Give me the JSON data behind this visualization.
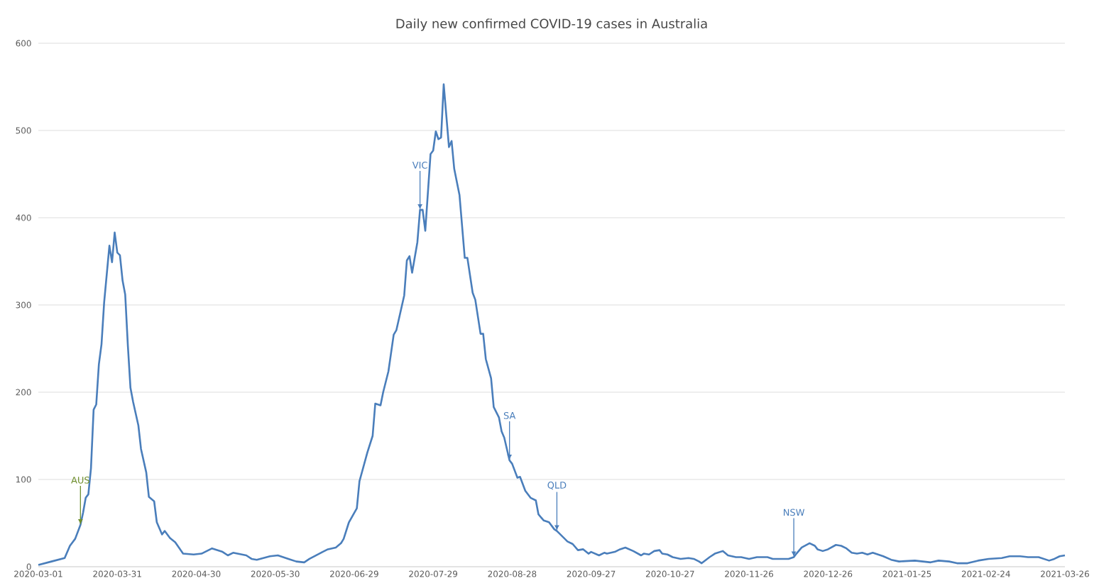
{
  "chart_data": {
    "type": "line",
    "title": "Daily new confirmed COVID-19 cases in Australia",
    "x": [
      "2020-03-01",
      "2020-03-06",
      "2020-03-11",
      "2020-03-13",
      "2020-03-15",
      "2020-03-17",
      "2020-03-18",
      "2020-03-19",
      "2020-03-20",
      "2020-03-21",
      "2020-03-22",
      "2020-03-23",
      "2020-03-24",
      "2020-03-25",
      "2020-03-26",
      "2020-03-28",
      "2020-03-29",
      "2020-03-30",
      "2020-03-31",
      "2020-04-01",
      "2020-04-02",
      "2020-04-03",
      "2020-04-04",
      "2020-04-05",
      "2020-04-06",
      "2020-04-08",
      "2020-04-09",
      "2020-04-11",
      "2020-04-12",
      "2020-04-14",
      "2020-04-15",
      "2020-04-17",
      "2020-04-18",
      "2020-04-20",
      "2020-04-22",
      "2020-04-25",
      "2020-04-29",
      "2020-05-02",
      "2020-05-06",
      "2020-05-10",
      "2020-05-12",
      "2020-05-14",
      "2020-05-19",
      "2020-05-21",
      "2020-05-23",
      "2020-05-28",
      "2020-05-31",
      "2020-06-04",
      "2020-06-07",
      "2020-06-10",
      "2020-06-12",
      "2020-06-17",
      "2020-06-19",
      "2020-06-22",
      "2020-06-24",
      "2020-06-25",
      "2020-06-27",
      "2020-06-30",
      "2020-07-01",
      "2020-07-04",
      "2020-07-06",
      "2020-07-07",
      "2020-07-09",
      "2020-07-10",
      "2020-07-12",
      "2020-07-14",
      "2020-07-15",
      "2020-07-18",
      "2020-07-19",
      "2020-07-20",
      "2020-07-21",
      "2020-07-23",
      "2020-07-24",
      "2020-07-25",
      "2020-07-26",
      "2020-07-28",
      "2020-07-29",
      "2020-07-30",
      "2020-07-31",
      "2020-08-01",
      "2020-08-02",
      "2020-08-04",
      "2020-08-05",
      "2020-08-06",
      "2020-08-08",
      "2020-08-10",
      "2020-08-11",
      "2020-08-13",
      "2020-08-14",
      "2020-08-16",
      "2020-08-17",
      "2020-08-18",
      "2020-08-20",
      "2020-08-21",
      "2020-08-23",
      "2020-08-24",
      "2020-08-25",
      "2020-08-27",
      "2020-08-28",
      "2020-08-30",
      "2020-08-31",
      "2020-09-02",
      "2020-09-04",
      "2020-09-06",
      "2020-09-07",
      "2020-09-09",
      "2020-09-11",
      "2020-09-13",
      "2020-09-14",
      "2020-09-18",
      "2020-09-20",
      "2020-09-22",
      "2020-09-24",
      "2020-09-26",
      "2020-09-27",
      "2020-09-30",
      "2020-10-02",
      "2020-10-03",
      "2020-10-06",
      "2020-10-08",
      "2020-10-10",
      "2020-10-13",
      "2020-10-16",
      "2020-10-17",
      "2020-10-19",
      "2020-10-21",
      "2020-10-23",
      "2020-10-24",
      "2020-10-26",
      "2020-10-28",
      "2020-10-31",
      "2020-11-03",
      "2020-11-05",
      "2020-11-07",
      "2020-11-08",
      "2020-11-11",
      "2020-11-13",
      "2020-11-16",
      "2020-11-18",
      "2020-11-21",
      "2020-11-23",
      "2020-11-26",
      "2020-11-29",
      "2020-12-03",
      "2020-12-05",
      "2020-12-11",
      "2020-12-13",
      "2020-12-14",
      "2020-12-16",
      "2020-12-19",
      "2020-12-21",
      "2020-12-22",
      "2020-12-24",
      "2020-12-26",
      "2020-12-29",
      "2020-12-31",
      "2021-01-02",
      "2021-01-04",
      "2021-01-06",
      "2021-01-08",
      "2021-01-10",
      "2021-01-12",
      "2021-01-16",
      "2021-01-19",
      "2021-01-22",
      "2021-01-28",
      "2021-02-03",
      "2021-02-06",
      "2021-02-10",
      "2021-02-13",
      "2021-02-17",
      "2021-02-21",
      "2021-02-25",
      "2021-03-02",
      "2021-03-05",
      "2021-03-09",
      "2021-03-12",
      "2021-03-16",
      "2021-03-20",
      "2021-03-22",
      "2021-03-24",
      "2021-03-26"
    ],
    "series": [
      {
        "color": "#4a7ebb",
        "values": [
          2,
          6,
          10,
          24,
          32,
          48,
          62,
          79,
          83,
          113,
          180,
          186,
          232,
          255,
          303,
          368,
          349,
          383,
          360,
          357,
          328,
          312,
          254,
          205,
          189,
          162,
          135,
          108,
          80,
          75,
          51,
          37,
          41,
          33,
          28,
          15,
          14,
          15,
          21,
          17,
          13,
          16,
          13,
          9,
          8,
          12,
          13,
          9,
          6,
          5,
          9,
          17,
          20,
          22,
          27,
          32,
          51,
          67,
          98,
          131,
          150,
          187,
          185,
          200,
          224,
          266,
          271,
          311,
          351,
          356,
          337,
          372,
          409,
          409,
          385,
          473,
          477,
          499,
          490,
          492,
          553,
          481,
          488,
          456,
          426,
          354,
          354,
          314,
          306,
          267,
          267,
          238,
          216,
          183,
          171,
          155,
          148,
          122,
          118,
          102,
          103,
          87,
          79,
          76,
          60,
          53,
          51,
          43,
          41,
          29,
          26,
          19,
          20,
          15,
          17,
          13,
          16,
          15,
          17,
          20,
          22,
          18,
          13,
          15,
          14,
          18,
          19,
          15,
          14,
          11,
          9,
          10,
          9,
          6,
          4,
          11,
          15,
          18,
          13,
          11,
          11,
          9,
          11,
          11,
          9,
          9,
          11,
          15,
          22,
          27,
          24,
          20,
          18,
          20,
          25,
          24,
          21,
          16,
          15,
          16,
          14,
          16,
          12,
          8,
          6,
          7,
          5,
          7,
          6,
          4,
          4,
          7,
          9,
          10,
          12,
          12,
          11,
          11,
          7,
          9,
          12,
          13
        ]
      }
    ],
    "xlim": [
      "2020-03-01",
      "2021-03-26"
    ],
    "xticks": [
      "2020-03-01",
      "2020-03-31",
      "2020-04-30",
      "2020-05-30",
      "2020-06-29",
      "2020-07-29",
      "2020-08-28",
      "2020-09-27",
      "2020-10-27",
      "2020-11-26",
      "2020-12-26",
      "2021-01-25",
      "2021-02-24",
      "2021-03-26"
    ],
    "ylim": [
      0,
      600
    ],
    "yticks": [
      0,
      100,
      200,
      300,
      400,
      500,
      600
    ],
    "grid": "y",
    "marker": "none",
    "line_style": "solid",
    "annotations": [
      {
        "text": "AUS",
        "x": "2020-03-17",
        "y": 48
      },
      {
        "text": "VIC",
        "x": "2020-07-24",
        "y": 409
      },
      {
        "text": "SA",
        "x": "2020-08-27",
        "y": 122
      },
      {
        "text": "QLD",
        "x": "2020-09-14",
        "y": 41
      },
      {
        "text": "NSW",
        "x": "2020-12-13",
        "y": 11
      }
    ]
  }
}
